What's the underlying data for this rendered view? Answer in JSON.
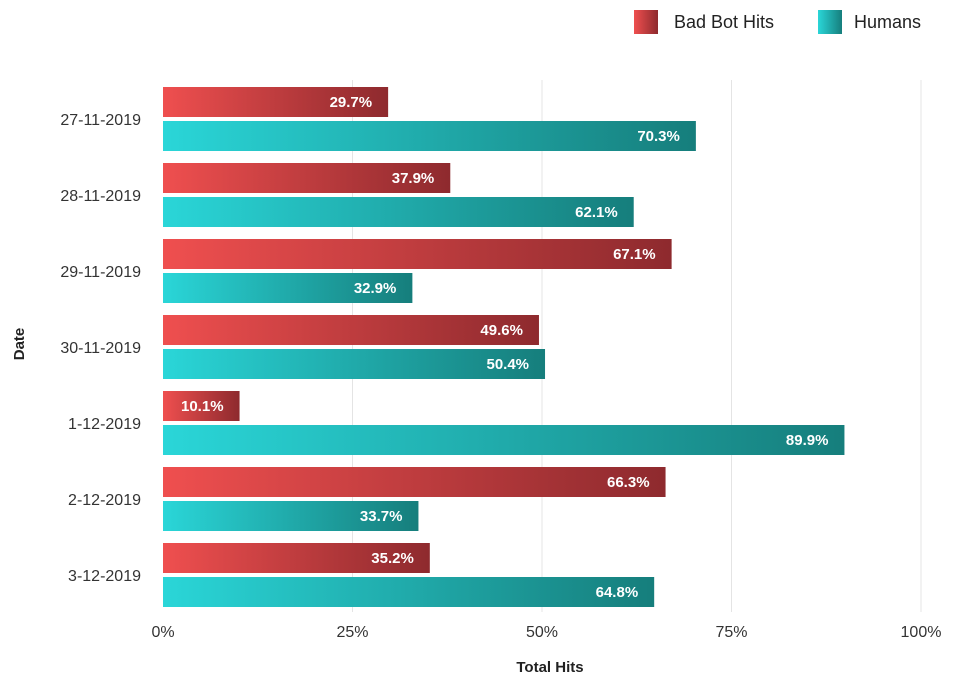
{
  "chart_data": {
    "type": "bar",
    "orientation": "horizontal",
    "categories": [
      "27-11-2019",
      "28-11-2019",
      "29-11-2019",
      "30-11-2019",
      "1-12-2019",
      "2-12-2019",
      "3-12-2019"
    ],
    "series": [
      {
        "name": "Bad Bot Hits",
        "values": [
          29.7,
          37.9,
          67.1,
          49.6,
          10.1,
          66.3,
          35.2
        ],
        "labels": [
          "29.7%",
          "37.9%",
          "67.1%",
          "49.6%",
          "10.1%",
          "66.3%",
          "35.2%"
        ],
        "color_start": "#ef4f4f",
        "color_end": "#8e2a2e"
      },
      {
        "name": "Humans",
        "values": [
          70.3,
          62.1,
          32.9,
          50.4,
          89.9,
          33.7,
          64.8
        ],
        "labels": [
          "70.3%",
          "62.1%",
          "32.9%",
          "50.4%",
          "89.9%",
          "33.7%",
          "64.8%"
        ],
        "color_start": "#2ad6d8",
        "color_end": "#167e7c"
      }
    ],
    "xlabel": "Total Hits",
    "ylabel": "Date",
    "xlim": [
      0,
      100
    ],
    "xticks": [
      "0%",
      "25%",
      "50%",
      "75%",
      "100%"
    ],
    "grid": true,
    "legend_position": "top-right"
  }
}
